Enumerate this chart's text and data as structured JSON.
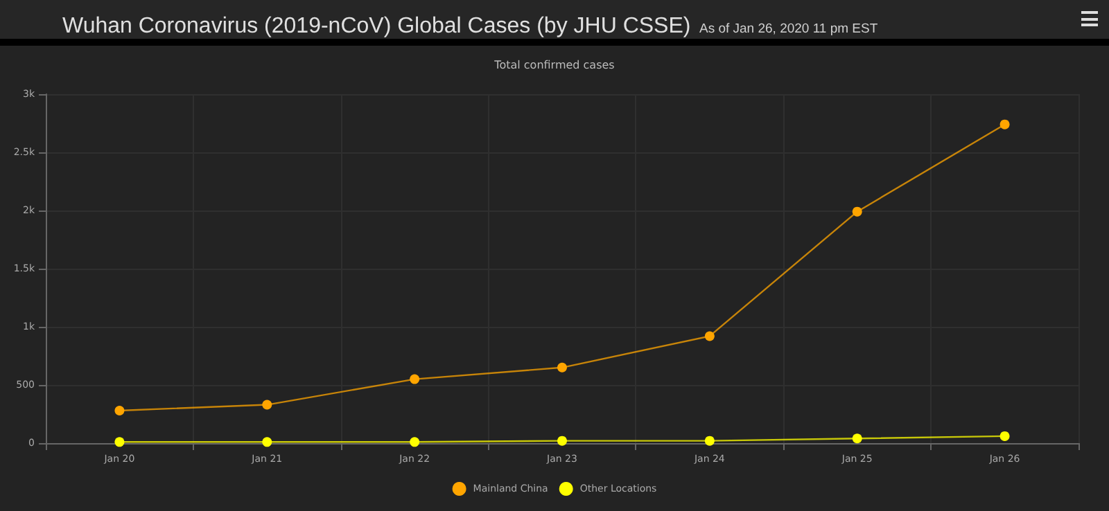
{
  "chart_data": {
    "type": "line",
    "title": "Wuhan Coronavirus (2019-nCoV) Global Cases (by JHU CSSE)",
    "subtitle": "As of Jan 26, 2020 11 pm EST",
    "annotations": [
      "Total confirmed cases"
    ],
    "categories": [
      "Jan 20",
      "Jan 21",
      "Jan 22",
      "Jan 23",
      "Jan 24",
      "Jan 25",
      "Jan 26"
    ],
    "series": [
      {
        "name": "Mainland China",
        "color": "#ffa500",
        "values": [
          280,
          330,
          550,
          650,
          920,
          1990,
          2740
        ]
      },
      {
        "name": "Other Locations",
        "color": "#ffff00",
        "values": [
          10,
          10,
          10,
          20,
          20,
          40,
          60
        ]
      }
    ],
    "ylim": [
      0,
      3000
    ],
    "yticks": [
      0,
      500,
      {
        "value": 1000,
        "label": "1k"
      },
      {
        "value": 1500,
        "label": "1.5k"
      },
      {
        "value": 2000,
        "label": "2k"
      },
      {
        "value": 2500,
        "label": "2.5k"
      },
      {
        "value": 3000,
        "label": "3k"
      }
    ],
    "grid": true,
    "legend": "bottom",
    "marker": "circle",
    "line_style": "solid"
  }
}
